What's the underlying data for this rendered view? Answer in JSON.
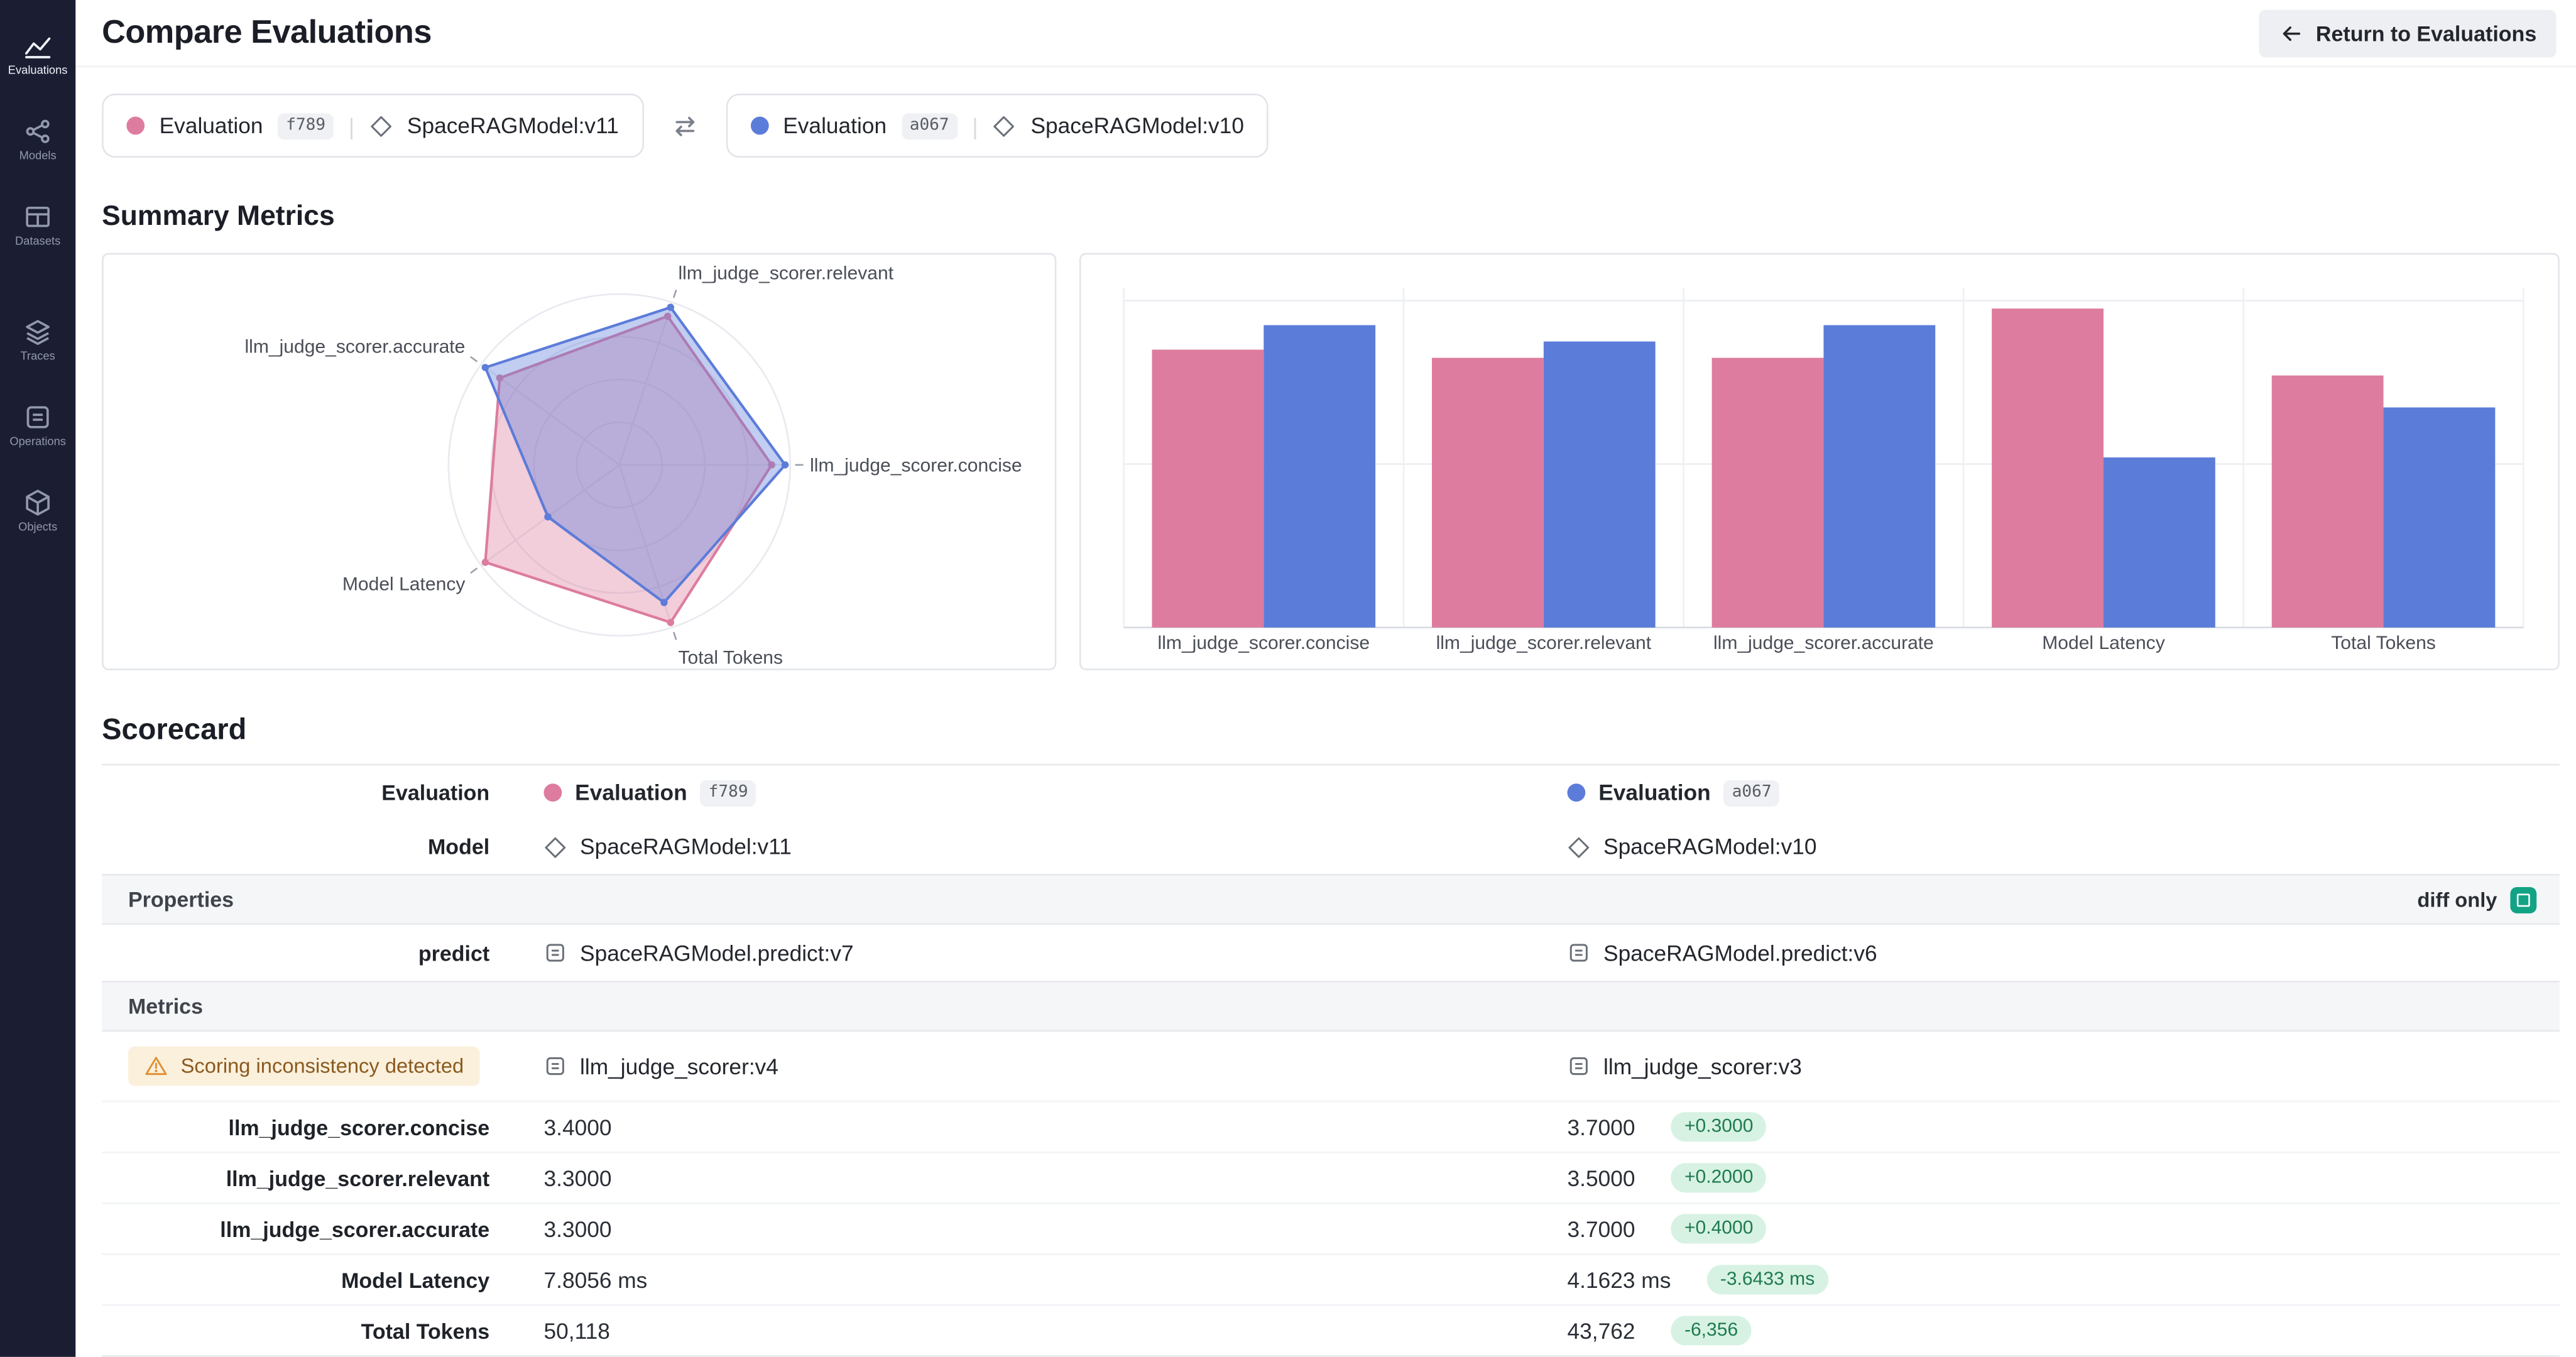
{
  "colors": {
    "pink": "#DD7C9E",
    "blue": "#5C7CD9",
    "positive_bg": "#D7F2E3",
    "positive_text": "#1E7B4F",
    "warning_bg": "#FBF0DC",
    "warning_text": "#8A5A1F",
    "warning_icon": "#E09136",
    "toggle": "#12A385"
  },
  "sidebar": {
    "items": [
      {
        "id": "evaluations",
        "label": "Evaluations",
        "active": true,
        "gap_before": false
      },
      {
        "id": "models",
        "label": "Models",
        "active": false,
        "gap_before": false
      },
      {
        "id": "datasets",
        "label": "Datasets",
        "active": false,
        "gap_before": false
      },
      {
        "id": "traces",
        "label": "Traces",
        "active": false,
        "gap_before": true
      },
      {
        "id": "operations",
        "label": "Operations",
        "active": false,
        "gap_before": false
      },
      {
        "id": "objects",
        "label": "Objects",
        "active": false,
        "gap_before": false
      }
    ]
  },
  "header": {
    "title": "Compare Evaluations",
    "return_button": "Return to Evaluations"
  },
  "eval_pills": {
    "left": {
      "name": "Evaluation",
      "hash": "f789",
      "model": "SpaceRAGModel:v11",
      "color": "#DD7C9E"
    },
    "right": {
      "name": "Evaluation",
      "hash": "a067",
      "model": "SpaceRAGModel:v10",
      "color": "#5C7CD9"
    }
  },
  "summary": {
    "title": "Summary Metrics"
  },
  "chart_data": [
    {
      "type": "radar",
      "title": "",
      "axes": [
        "llm_judge_scorer.relevant",
        "llm_judge_scorer.concise",
        "Total Tokens",
        "Model Latency",
        "llm_judge_scorer.accurate"
      ],
      "series": [
        {
          "name": "Evaluation f789",
          "color": "#DD7C9E",
          "values": [
            3.3,
            3.4,
            50118,
            7.8056,
            3.3
          ]
        },
        {
          "name": "Evaluation a067",
          "color": "#5C7CD9",
          "values": [
            3.5,
            3.7,
            43762,
            4.1623,
            3.7
          ]
        }
      ],
      "grid": "concentric-circles",
      "normalization": "per-axis max"
    },
    {
      "type": "bar",
      "title": "",
      "categories": [
        "llm_judge_scorer.concise",
        "llm_judge_scorer.relevant",
        "llm_judge_scorer.accurate",
        "Model Latency",
        "Total Tokens"
      ],
      "series": [
        {
          "name": "Evaluation f789",
          "color": "#DD7C9E",
          "values": [
            3.4,
            3.3,
            3.3,
            7.8056,
            50118
          ]
        },
        {
          "name": "Evaluation a067",
          "color": "#5C7CD9",
          "values": [
            3.7,
            3.5,
            3.7,
            4.1623,
            43762
          ]
        }
      ],
      "axis_max_per_category": [
        4,
        4,
        4,
        8,
        65000
      ],
      "grid": true,
      "legend": "none",
      "ylabel": "",
      "xlabel": ""
    }
  ],
  "scorecard": {
    "title": "Scorecard",
    "eval_row": {
      "label": "Evaluation",
      "left_name": "Evaluation",
      "left_hash": "f789",
      "right_name": "Evaluation",
      "right_hash": "a067"
    },
    "model_row": {
      "label": "Model",
      "left": "SpaceRAGModel:v11",
      "right": "SpaceRAGModel:v10"
    },
    "properties": {
      "header": "Properties",
      "diff_only_label": "diff only",
      "diff_only_checked": true
    },
    "predict_row": {
      "label": "predict",
      "left": "SpaceRAGModel.predict:v7",
      "right": "SpaceRAGModel.predict:v6"
    },
    "metrics": {
      "header": "Metrics"
    },
    "scorer_row": {
      "warning": "Scoring inconsistency detected",
      "left": "llm_judge_scorer:v4",
      "right": "llm_judge_scorer:v3"
    },
    "metric_rows": [
      {
        "label": "llm_judge_scorer.concise",
        "left": "3.4000",
        "right": "3.7000",
        "delta": "+0.3000"
      },
      {
        "label": "llm_judge_scorer.relevant",
        "left": "3.3000",
        "right": "3.5000",
        "delta": "+0.2000"
      },
      {
        "label": "llm_judge_scorer.accurate",
        "left": "3.3000",
        "right": "3.7000",
        "delta": "+0.4000"
      },
      {
        "label": "Model Latency",
        "left": "7.8056 ms",
        "right": "4.1623 ms",
        "delta": "-3.6433 ms"
      },
      {
        "label": "Total Tokens",
        "left": "50,118",
        "right": "43,762",
        "delta": "-6,356"
      }
    ]
  }
}
